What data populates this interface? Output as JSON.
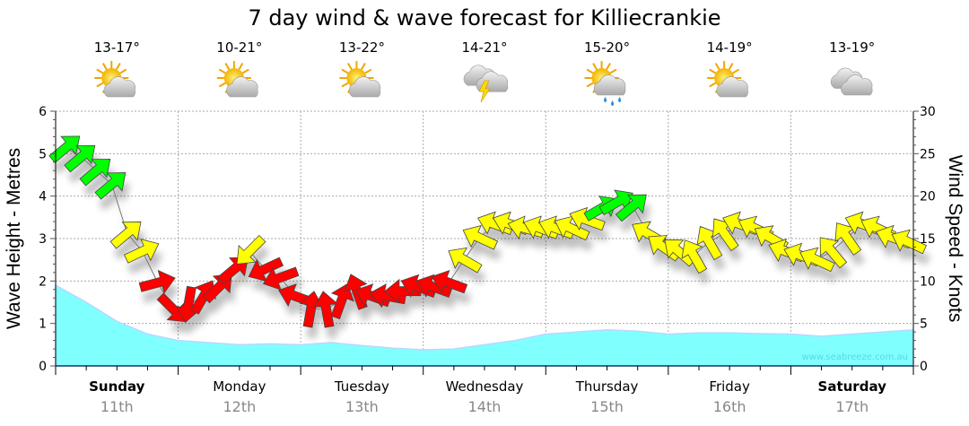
{
  "chart_data": {
    "type": "area",
    "title": "7 day wind & wave forecast for Killiecrankie",
    "ylabel_left": "Wave Height - Metres",
    "ylabel_right": "Wind Speed - Knots",
    "ylim_left": [
      0,
      6
    ],
    "ylim_right": [
      0,
      30
    ],
    "yticks_left": [
      "0",
      "1",
      "2",
      "3",
      "4",
      "5",
      "6"
    ],
    "yticks_right": [
      "0",
      "5",
      "10",
      "15",
      "20",
      "25",
      "30"
    ],
    "grid": true,
    "watermark": "www.seabreeze.com.au",
    "days": [
      {
        "name": "Sunday",
        "date": "11th",
        "bold": true,
        "temp": "13-17°",
        "icon": "partly-cloudy-icon"
      },
      {
        "name": "Monday",
        "date": "12th",
        "bold": false,
        "temp": "10-21°",
        "icon": "partly-cloudy-icon"
      },
      {
        "name": "Tuesday",
        "date": "13th",
        "bold": false,
        "temp": "13-22°",
        "icon": "partly-cloudy-icon"
      },
      {
        "name": "Wednesday",
        "date": "14th",
        "bold": false,
        "temp": "14-21°",
        "icon": "thunderstorm-icon"
      },
      {
        "name": "Thursday",
        "date": "15th",
        "bold": false,
        "temp": "15-20°",
        "icon": "sun-shower-icon"
      },
      {
        "name": "Friday",
        "date": "16th",
        "bold": false,
        "temp": "14-19°",
        "icon": "partly-cloudy-icon"
      },
      {
        "name": "Saturday",
        "date": "17th",
        "bold": true,
        "temp": "13-19°",
        "icon": "cloudy-icon"
      }
    ],
    "wave_series": {
      "name": "Wave Height (m)",
      "hours": [
        0,
        6,
        12,
        18,
        24,
        30,
        36,
        42,
        48,
        54,
        60,
        66,
        72,
        78,
        84,
        90,
        96,
        102,
        108,
        114,
        120,
        126,
        132,
        138,
        144,
        150,
        156,
        162,
        168
      ],
      "values": [
        1.9,
        1.5,
        1.05,
        0.75,
        0.6,
        0.55,
        0.5,
        0.52,
        0.5,
        0.55,
        0.48,
        0.42,
        0.38,
        0.4,
        0.5,
        0.6,
        0.75,
        0.8,
        0.85,
        0.82,
        0.75,
        0.78,
        0.78,
        0.76,
        0.75,
        0.7,
        0.75,
        0.8,
        0.85
      ],
      "color": "#80ffff"
    },
    "wind_series": {
      "name": "Wind Speed (knots)",
      "hours": [
        2,
        5,
        8,
        11,
        14,
        17,
        20,
        23,
        26,
        29,
        32,
        35,
        38,
        41,
        44,
        47,
        50,
        53,
        56,
        59,
        62,
        65,
        68,
        71,
        74,
        77,
        80,
        83,
        86,
        89,
        92,
        95,
        98,
        101,
        104,
        107,
        110,
        113,
        116,
        119,
        122,
        125,
        128,
        131,
        134,
        137,
        140,
        143,
        146,
        149,
        152,
        155,
        158,
        161,
        164,
        167
      ],
      "speed": [
        25.7,
        24.6,
        23,
        21.4,
        15.6,
        13.5,
        9.8,
        6.7,
        7.2,
        8.2,
        9.3,
        11.4,
        13.5,
        11.4,
        10.4,
        8.2,
        6.7,
        6.7,
        7.7,
        8.8,
        8.2,
        8.2,
        8.8,
        9.3,
        9.3,
        9.8,
        12.5,
        15.1,
        16.7,
        16.7,
        16.2,
        16.2,
        16.2,
        16.2,
        17.2,
        18.6,
        19.3,
        18.8,
        15.6,
        14,
        13.5,
        13,
        14.6,
        15.6,
        16.7,
        16.2,
        15.1,
        13.5,
        13,
        12.5,
        13.5,
        15.1,
        16.7,
        16.2,
        15.1,
        14.6
      ],
      "heading_deg": [
        -40,
        -40,
        -40,
        -40,
        -40,
        -25,
        -15,
        45,
        100,
        -60,
        -45,
        -40,
        135,
        155,
        160,
        200,
        -80,
        -100,
        -70,
        -110,
        200,
        190,
        180,
        200,
        200,
        200,
        210,
        205,
        200,
        200,
        195,
        200,
        200,
        205,
        200,
        -30,
        -30,
        -40,
        210,
        215,
        220,
        -120,
        -120,
        -125,
        200,
        205,
        210,
        200,
        200,
        205,
        -130,
        -125,
        200,
        205,
        200,
        205
      ],
      "color_scale": {
        "light": "#ff0000",
        "moderate": "#ffff00",
        "strong": "#00ff00"
      },
      "thresholds_knots": [
        12,
        18.5
      ]
    }
  }
}
